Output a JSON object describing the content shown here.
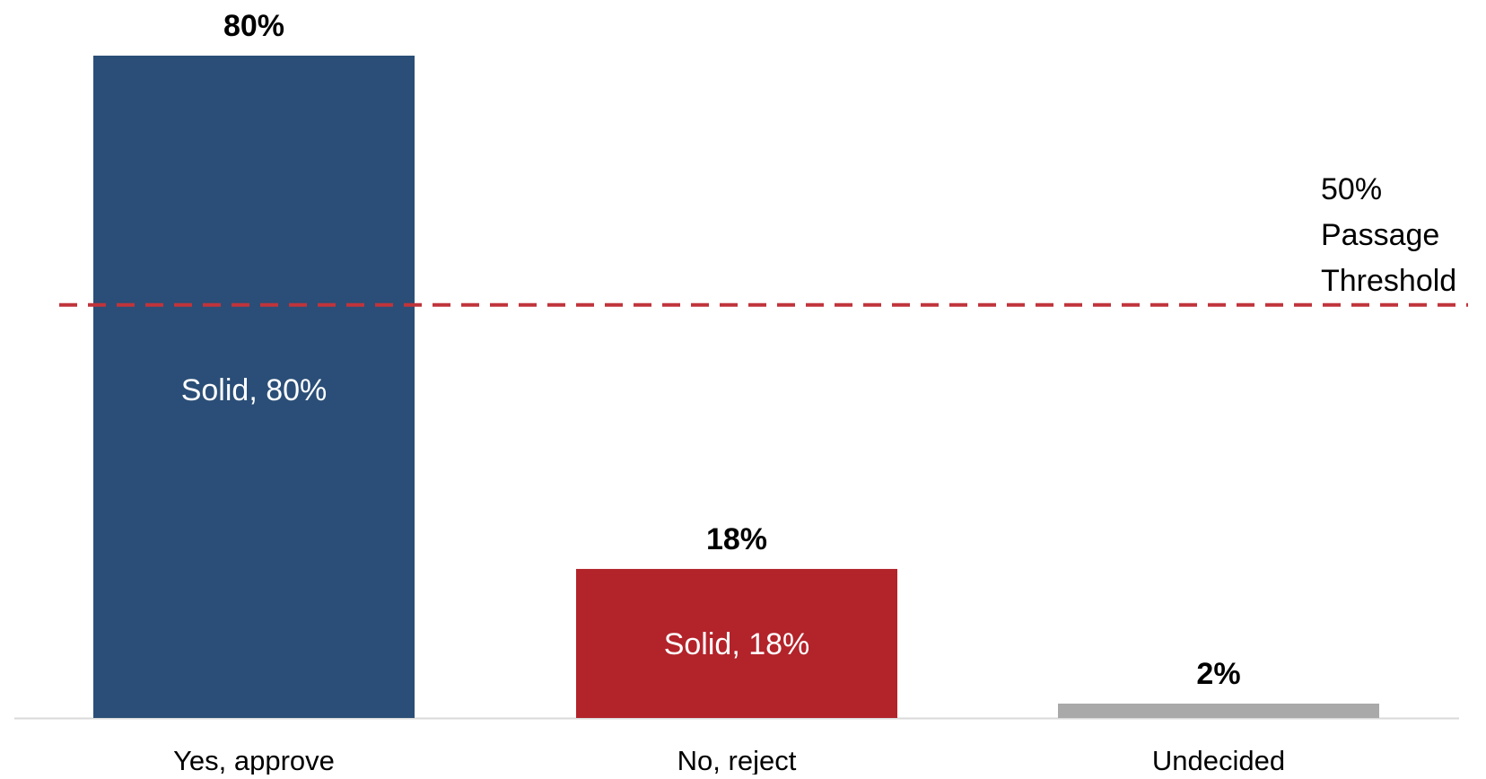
{
  "chart_data": {
    "type": "bar",
    "categories": [
      "Yes, approve",
      "No, reject",
      "Undecided"
    ],
    "values": [
      80,
      18,
      2
    ],
    "value_labels": [
      "80%",
      "18%",
      "2%"
    ],
    "inner_labels": [
      "Solid, 80%",
      "Solid, 18%",
      ""
    ],
    "colors": [
      "#2a4e77",
      "#b3232a",
      "#a9a9a9"
    ],
    "ylim": [
      0,
      80
    ],
    "threshold": {
      "value": 50,
      "label_lines": [
        "50%",
        "Passage",
        "Threshold"
      ],
      "color": "#c0343b",
      "style": "dashed"
    },
    "grid": false,
    "legend": "none",
    "title": "",
    "xlabel": "",
    "ylabel": ""
  }
}
